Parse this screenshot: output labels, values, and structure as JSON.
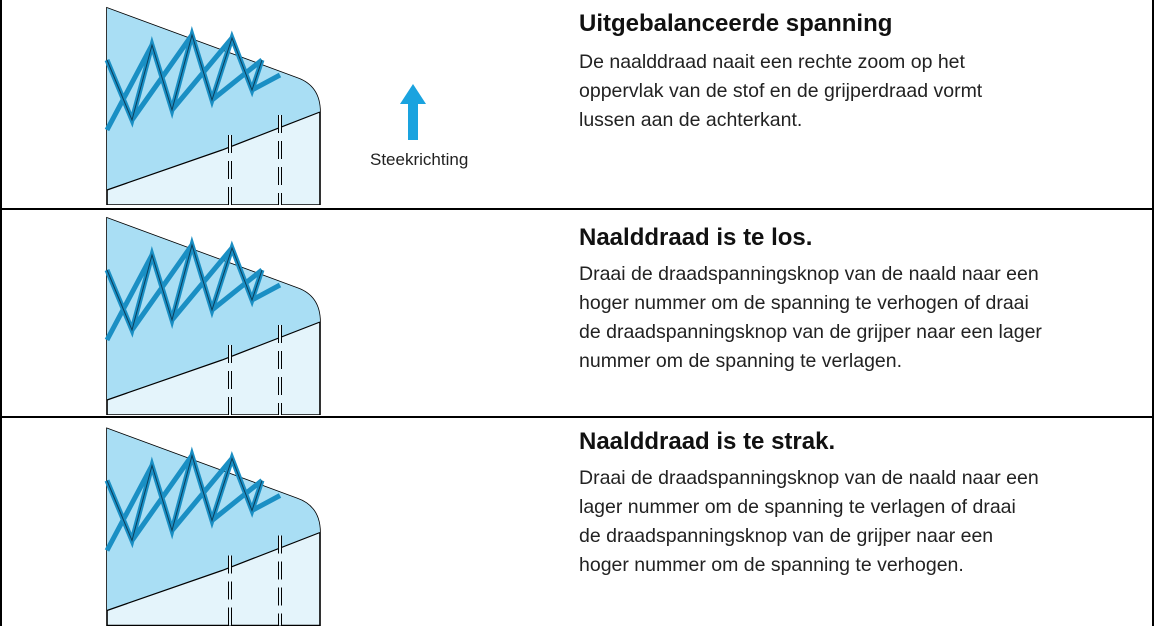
{
  "arrow_label": "Steekrichting",
  "rows": [
    {
      "title": "Uitgebalanceerde spanning",
      "lines": [
        "De naalddraad naait een rechte zoom op het",
        "oppervlak van de stof en de grijperdraad vormt",
        "lussen aan de achterkant."
      ]
    },
    {
      "title": "Naalddraad is te los.",
      "lines": [
        "Draai de draadspanningsknop van de naald naar een",
        "hoger nummer om de spanning te verhogen of draai",
        "de draadspanningsknop van de grijper naar een lager",
        "nummer om de spanning te verlagen."
      ]
    },
    {
      "title": "Naalddraad is te strak.",
      "lines": [
        "Draai de draadspanningsknop van de naald naar een",
        "lager nummer om de spanning te verlagen of draai",
        "de draadspanningsknop van de grijper naar een",
        "hoger nummer om de spanning te verhogen."
      ]
    }
  ]
}
